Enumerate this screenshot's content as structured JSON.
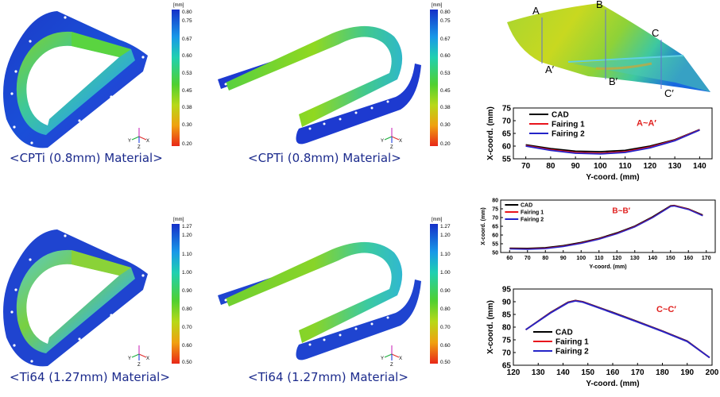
{
  "captions": {
    "tl": "<CPTi (0.8mm) Material>",
    "tm": "<CPTi (0.8mm) Material>",
    "bl": "<Ti64 (1.27mm) Material>",
    "bm": "<Ti64 (1.27mm) Material>"
  },
  "colorbars": {
    "unit": "[mm]",
    "cpti_ticks": [
      "0.80",
      "0.75",
      "0.67",
      "0.60",
      "0.53",
      "0.45",
      "0.38",
      "0.30",
      "0.20"
    ],
    "ti64_ticks": [
      "1.27",
      "1.20",
      "1.10",
      "1.00",
      "0.90",
      "0.80",
      "0.70",
      "0.60",
      "0.50"
    ]
  },
  "triad": {
    "y": "Y",
    "x": "X",
    "z": "Z"
  },
  "sections": {
    "A": "A",
    "A2": "A′",
    "B": "B",
    "B2": "B′",
    "C": "C",
    "C2": "C′"
  },
  "colors": {
    "cad": "#000000",
    "fairing1": "#e8141c",
    "fairing2": "#2424c8",
    "caption": "#1b2a8c",
    "section_label": "#e0201e"
  },
  "chart_data": [
    {
      "type": "line",
      "annotation": "A~A′",
      "xlabel": "Y-coord. (mm)",
      "ylabel": "X-coord. (mm)",
      "xlim": [
        65,
        145
      ],
      "ylim": [
        55,
        75
      ],
      "xticks": [
        70,
        80,
        90,
        100,
        110,
        120,
        130,
        140
      ],
      "yticks": [
        55,
        60,
        65,
        70,
        75
      ],
      "series": [
        {
          "name": "CAD",
          "x": [
            70,
            80,
            90,
            100,
            110,
            120,
            130,
            140
          ],
          "y": [
            60.5,
            59.0,
            58.0,
            57.8,
            58.3,
            60.0,
            62.5,
            66.5
          ]
        },
        {
          "name": "Fairing 1",
          "x": [
            70,
            80,
            90,
            100,
            110,
            120,
            130,
            140
          ],
          "y": [
            60.2,
            58.6,
            57.5,
            57.2,
            57.8,
            59.6,
            62.3,
            66.4
          ]
        },
        {
          "name": "Fairing 2",
          "x": [
            70,
            80,
            90,
            100,
            110,
            120,
            130,
            140
          ],
          "y": [
            60.0,
            58.3,
            57.2,
            56.9,
            57.5,
            59.3,
            62.1,
            66.3
          ]
        }
      ]
    },
    {
      "type": "line",
      "annotation": "B~B′",
      "xlabel": "Y-coord. (mm)",
      "ylabel": "X-coord. (mm)",
      "xlim": [
        55,
        175
      ],
      "ylim": [
        50,
        80
      ],
      "xticks": [
        60,
        70,
        80,
        90,
        100,
        110,
        120,
        130,
        140,
        150,
        160,
        170
      ],
      "yticks": [
        50,
        55,
        60,
        65,
        70,
        75,
        80
      ],
      "series": [
        {
          "name": "CAD",
          "x": [
            60,
            70,
            80,
            90,
            100,
            110,
            120,
            130,
            140,
            150,
            152,
            160,
            168
          ],
          "y": [
            52.5,
            52.4,
            52.8,
            54,
            55.8,
            58.2,
            61.3,
            65.2,
            70.5,
            76.8,
            77.0,
            75.0,
            71.5
          ]
        },
        {
          "name": "Fairing 1",
          "x": [
            60,
            70,
            80,
            90,
            100,
            110,
            120,
            130,
            140,
            150,
            152,
            160,
            168
          ],
          "y": [
            52.2,
            52.0,
            52.4,
            53.6,
            55.4,
            57.8,
            60.9,
            64.8,
            70.1,
            76.5,
            76.8,
            74.8,
            71.2
          ]
        },
        {
          "name": "Fairing 2",
          "x": [
            60,
            70,
            80,
            90,
            100,
            110,
            120,
            130,
            140,
            150,
            152,
            160,
            168
          ],
          "y": [
            52.0,
            51.8,
            52.2,
            53.4,
            55.2,
            57.6,
            60.7,
            64.6,
            69.9,
            76.3,
            76.6,
            74.6,
            71.0
          ]
        }
      ]
    },
    {
      "type": "line",
      "annotation": "C~C′",
      "xlabel": "Y-coord. (mm)",
      "ylabel": "X-coord. (mm)",
      "xlim": [
        120,
        200
      ],
      "ylim": [
        65,
        95
      ],
      "xticks": [
        120,
        130,
        140,
        150,
        160,
        170,
        180,
        190,
        200
      ],
      "yticks": [
        65,
        70,
        75,
        80,
        85,
        90,
        95
      ],
      "series": [
        {
          "name": "CAD",
          "x": [
            125,
            135,
            142,
            145,
            148,
            160,
            170,
            180,
            190,
            199
          ],
          "y": [
            79.0,
            85.8,
            89.8,
            90.5,
            90.0,
            85.8,
            82.2,
            78.5,
            74.5,
            68.0
          ]
        },
        {
          "name": "Fairing 1",
          "x": [
            125,
            135,
            142,
            145,
            148,
            160,
            170,
            180,
            190,
            199
          ],
          "y": [
            79.0,
            85.7,
            89.7,
            90.4,
            89.9,
            85.7,
            82.1,
            78.4,
            74.4,
            68.0
          ]
        },
        {
          "name": "Fairing 2",
          "x": [
            125,
            135,
            142,
            145,
            148,
            160,
            170,
            180,
            190,
            199
          ],
          "y": [
            79.0,
            85.6,
            89.6,
            90.3,
            89.8,
            85.6,
            82.0,
            78.3,
            74.3,
            68.0
          ]
        }
      ]
    }
  ]
}
